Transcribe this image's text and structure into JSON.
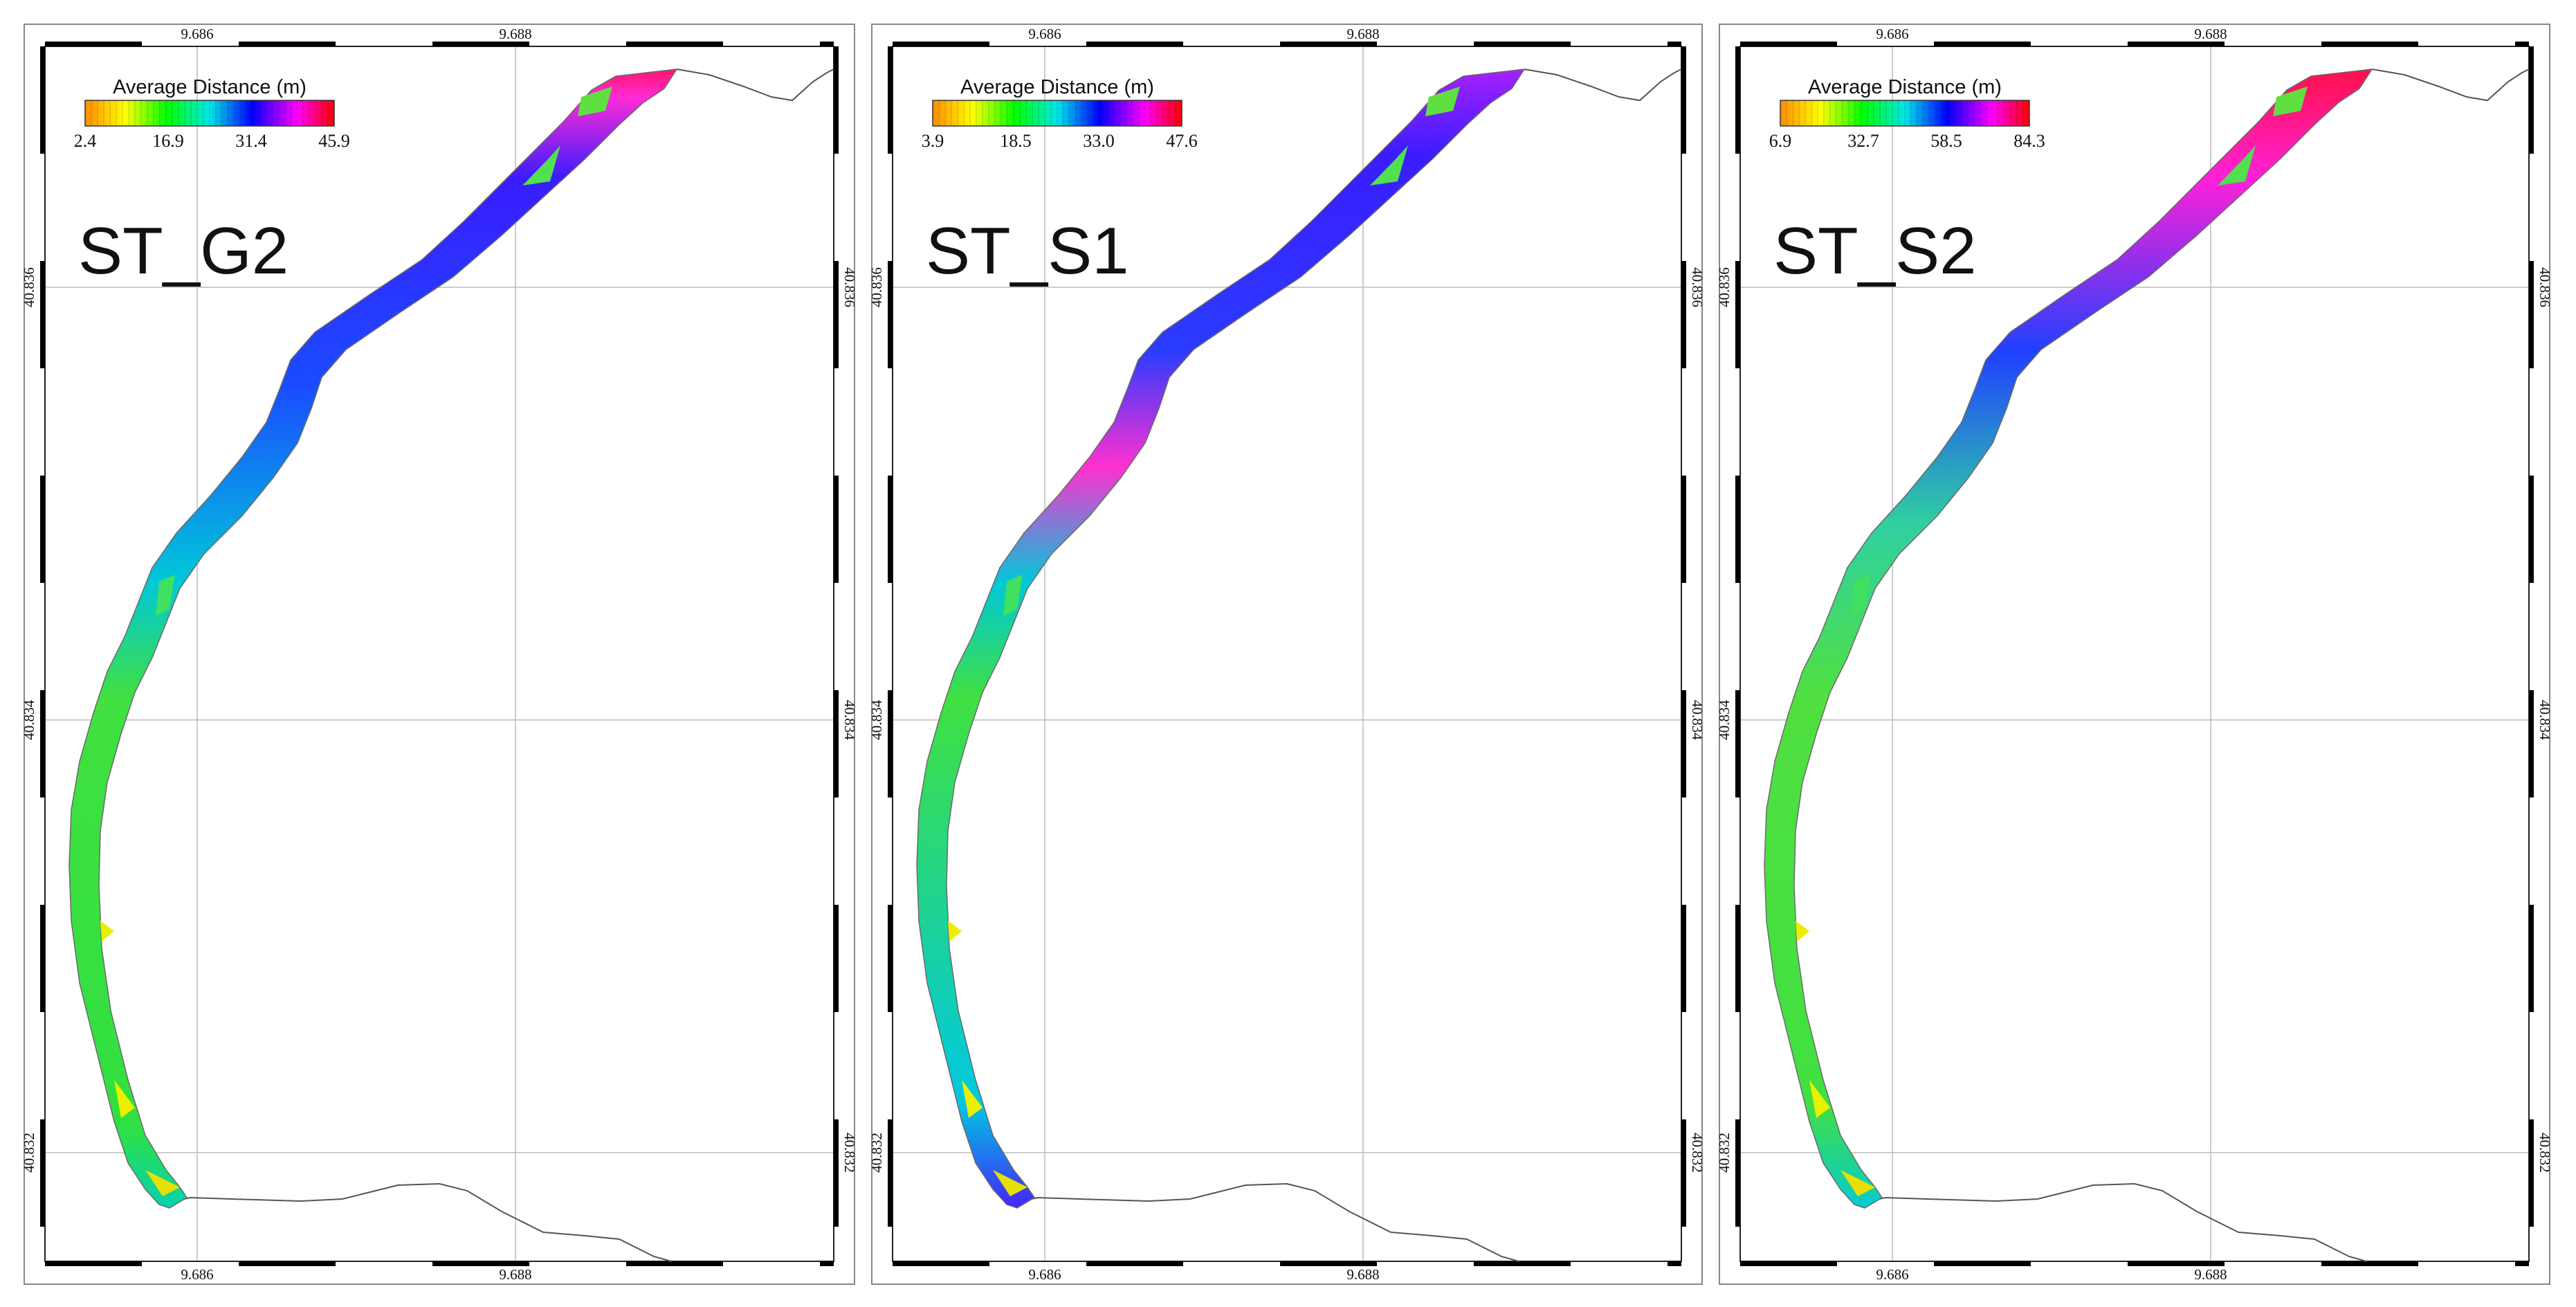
{
  "colorbar_title": "Average Distance (m)",
  "axis_labels": {
    "lon": [
      "9.686",
      "9.688"
    ],
    "lat": [
      "40.836",
      "40.834",
      "40.832"
    ]
  },
  "palette": [
    "#ff8c00",
    "#ffff00",
    "#00ff00",
    "#00e6e6",
    "#0000ff",
    "#ff00ff",
    "#ff0000"
  ],
  "panels": [
    {
      "title": "ST_G2",
      "ticks": [
        "2.4",
        "16.9",
        "31.4",
        "45.9"
      ]
    },
    {
      "title": "ST_S1",
      "ticks": [
        "3.9",
        "18.5",
        "33.0",
        "47.6"
      ]
    },
    {
      "title": "ST_S2",
      "ticks": [
        "6.9",
        "32.7",
        "58.5",
        "84.3"
      ]
    }
  ]
}
